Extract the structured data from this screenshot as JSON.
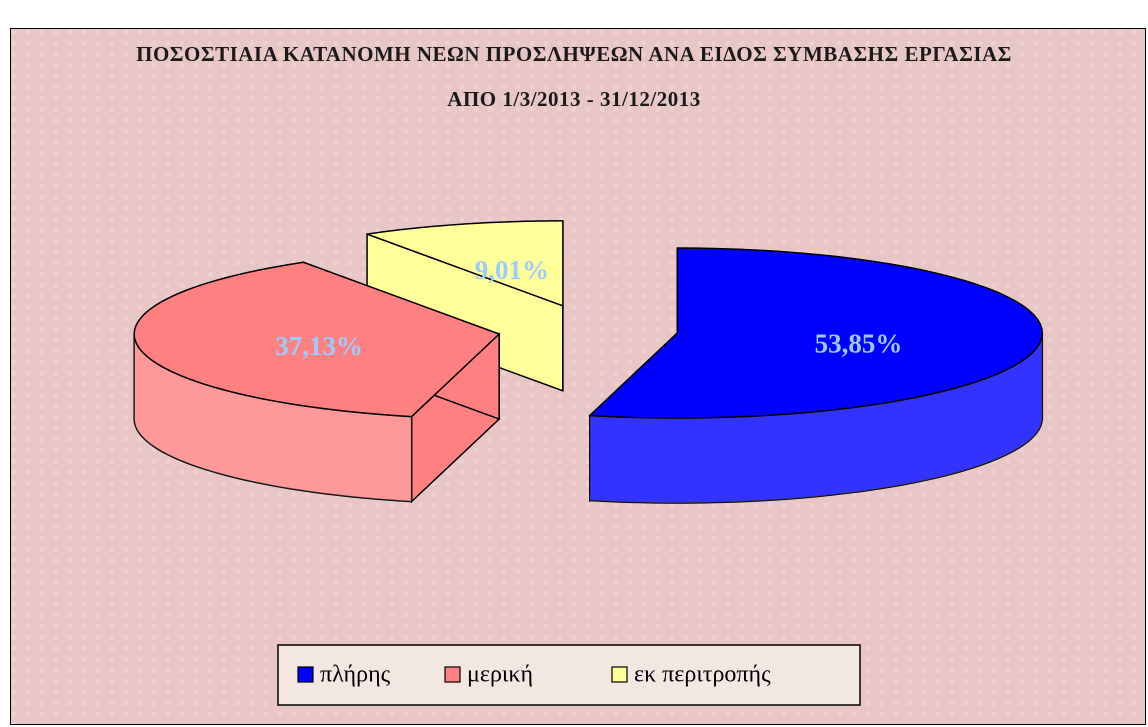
{
  "chart_data": {
    "type": "pie3d",
    "title": "ΠΟΣΟΣΤΙΑΙΑ ΚΑΤΑΝΟΜΗ ΝΕΩΝ ΠΡΟΣΛΗΨΕΩΝ ΑΝΑ ΕΙΔΟΣ ΣΥΜΒΑΣΗΣ ΕΡΓΑΣΙΑΣ ΑΠΟ 1/3/2013 - 31/12/2013",
    "categories": [
      "πλήρης",
      "μερική",
      "εκ περιτροπής"
    ],
    "values": [
      53.85,
      37.13,
      9.01
    ],
    "value_labels": [
      "53,85%",
      "37,13%",
      "9,01%"
    ],
    "colors": [
      "#0000ff",
      "#ff8080",
      "#ffff99"
    ],
    "legend": "bottom"
  }
}
